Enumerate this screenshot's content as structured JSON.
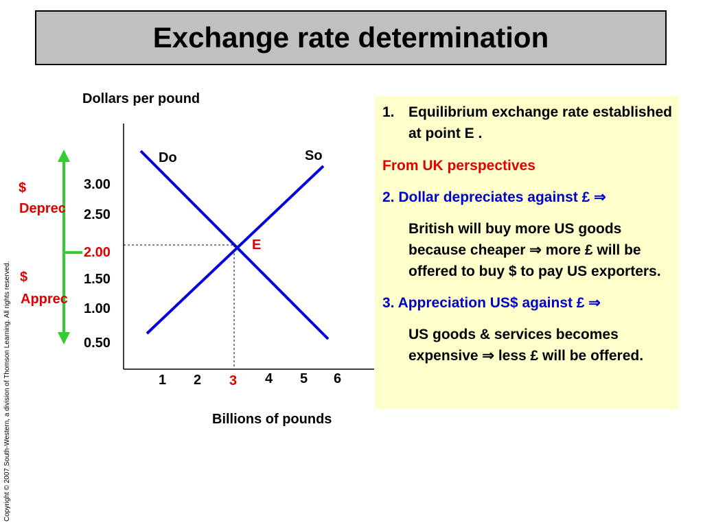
{
  "title": "Exchange rate determination",
  "copyright": "Copyright  © 2007 South-Western, a division of Thomson Learning. All rights reserved.",
  "diagram": {
    "y_axis_label": "Dollars per pound",
    "x_axis_label": "Billions of pounds",
    "y_ticks": [
      "3.00",
      "2.50",
      "2.00",
      "1.50",
      "1.00",
      "0.50"
    ],
    "x_ticks": [
      "1",
      "2",
      "3",
      "4",
      "5",
      "6"
    ],
    "demand_label": "Do",
    "supply_label": "So",
    "equilibrium_label": "E",
    "equilibrium_rate": "2.00",
    "equilibrium_quantity": "3",
    "deprec_label_1": "$",
    "deprec_label_2": "Deprec",
    "apprec_label_1": "$",
    "apprec_label_2": "Apprec",
    "colors": {
      "curves": "#0000dd",
      "arrow": "#33cc33",
      "highlight": "#e00000"
    }
  },
  "notes": {
    "item1_num": "1.",
    "item1_text": "Equilibrium exchange rate established at point E .",
    "perspective": "From UK perspectives",
    "item2_heading": "2. Dollar depreciates against £ ⇒",
    "item2_body": "British will buy more US goods because cheaper ⇒ more £ will be offered to buy $ to pay US exporters.",
    "item3_heading": "3. Appreciation US$ against £ ⇒",
    "item3_body": "US goods & services becomes expensive  ⇒ less £ will be offered."
  }
}
